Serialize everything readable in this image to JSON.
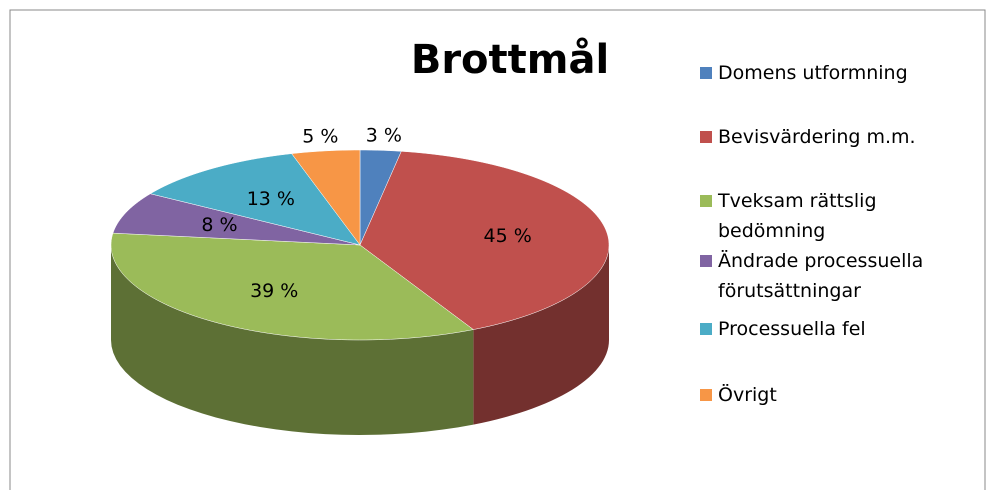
{
  "chart_data": {
    "type": "pie",
    "title": "Brottmål",
    "categories": [
      "Domens utformning",
      "Bevisvärdering m.m.",
      "Tveksam rättslig bedömning",
      "Ändrade processuella förutsättningar",
      "Processuella fel",
      "Övrigt"
    ],
    "values": [
      3,
      45,
      39,
      8,
      13,
      5
    ],
    "value_labels": [
      "3 %",
      "45 %",
      "39 %",
      "8 %",
      "13 %",
      "5 %"
    ],
    "colors": [
      "#4f81bd",
      "#c0504d",
      "#9bbb59",
      "#8064a2",
      "#4bacc6",
      "#f79646"
    ],
    "legend": "right"
  }
}
